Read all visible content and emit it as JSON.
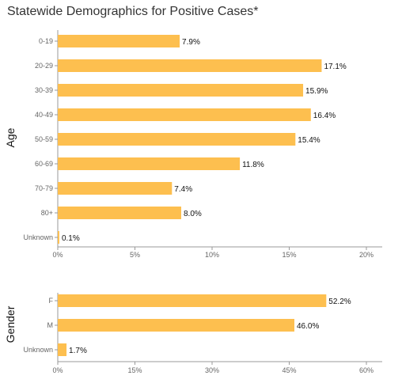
{
  "title": "Statewide Demographics for Positive Cases*",
  "chart_data": [
    {
      "type": "bar",
      "orientation": "horizontal",
      "ylabel": "Age",
      "categories": [
        "0-19",
        "20-29",
        "30-39",
        "40-49",
        "50-59",
        "60-69",
        "70-79",
        "80+",
        "Unknown"
      ],
      "values": [
        7.9,
        17.1,
        15.9,
        16.4,
        15.4,
        11.8,
        7.4,
        8.0,
        0.1
      ],
      "value_labels": [
        "7.9%",
        "17.1%",
        "15.9%",
        "16.4%",
        "15.4%",
        "11.8%",
        "7.4%",
        "8.0%",
        "0.1%"
      ],
      "xticks": [
        "0%",
        "5%",
        "10%",
        "15%",
        "20%"
      ],
      "xlim": [
        0,
        20
      ],
      "bar_color": "#FDBF4F"
    },
    {
      "type": "bar",
      "orientation": "horizontal",
      "ylabel": "Gender",
      "categories": [
        "F",
        "M",
        "Unknown"
      ],
      "values": [
        52.2,
        46.0,
        1.7
      ],
      "value_labels": [
        "52.2%",
        "46.0%",
        "1.7%"
      ],
      "xticks": [
        "0%",
        "15%",
        "30%",
        "45%",
        "60%"
      ],
      "xlim": [
        0,
        60
      ],
      "bar_color": "#FDBF4F"
    }
  ]
}
